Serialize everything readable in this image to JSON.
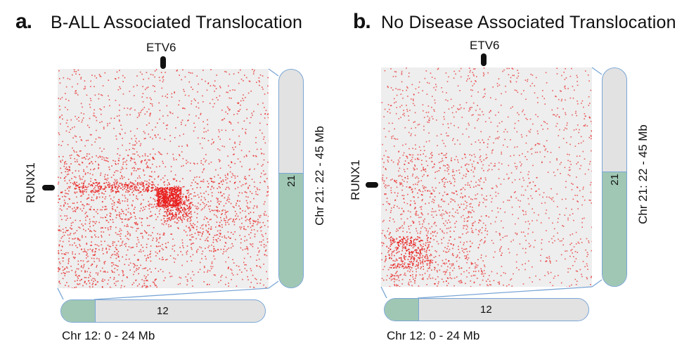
{
  "panel_a": {
    "letter": "a.",
    "title": "B-ALL Associated Translocation",
    "gene_top": "ETV6",
    "gene_left": "RUNX1",
    "chrom_bottom_id": "12",
    "chrom_bottom_range": "Chr 12: 0 - 24 Mb",
    "chrom_right_id": "21",
    "chrom_right_range": "Chr 21: 22 - 45 Mb"
  },
  "panel_b": {
    "letter": "b.",
    "title": "No Disease Associated Translocation",
    "gene_top": "ETV6",
    "gene_left": "RUNX1",
    "chrom_bottom_id": "12",
    "chrom_bottom_range": "Chr 12: 0 - 24 Mb",
    "chrom_right_id": "21",
    "chrom_right_range": "Chr 21: 22 - 45 Mb"
  },
  "colors": {
    "contact": "#e8201f",
    "chromosome_band": "#9fc7b4",
    "chromosome_body": "#e2e2e2",
    "chromosome_outline": "#7aa6d6",
    "heatmap_bg": "#eeeeee"
  }
}
